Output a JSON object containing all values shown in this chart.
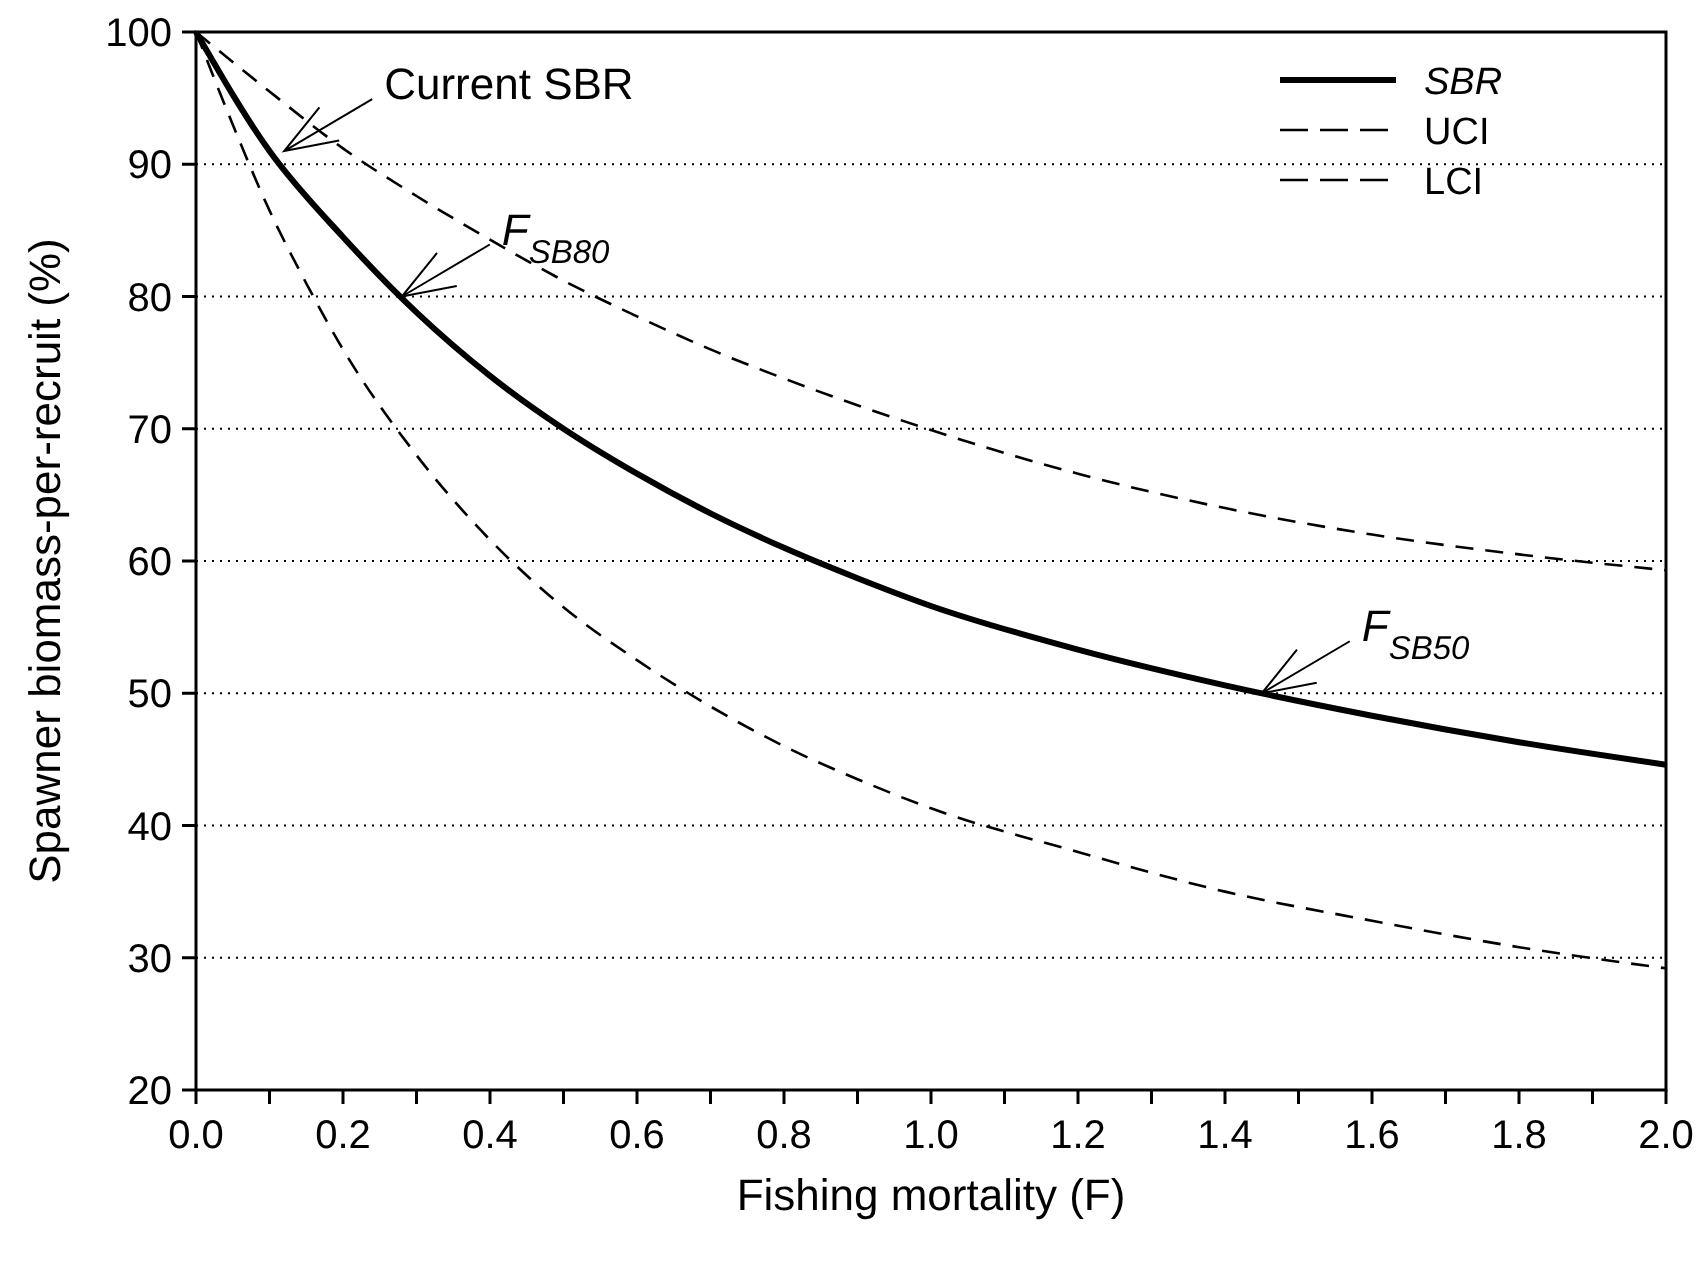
{
  "chart_data": {
    "type": "line",
    "xlabel": "Fishing mortality (F)",
    "ylabel": "Spawner biomass-per-recruit (%)",
    "xlim": [
      0,
      2
    ],
    "ylim": [
      20,
      100
    ],
    "xticks": [
      {
        "value": 0,
        "label": "0.0"
      },
      {
        "value": 0.1,
        "label": null
      },
      {
        "value": 0.2,
        "label": "0.2"
      },
      {
        "value": 0.3,
        "label": null
      },
      {
        "value": 0.4,
        "label": "0.4"
      },
      {
        "value": 0.5,
        "label": null
      },
      {
        "value": 0.6,
        "label": "0.6"
      },
      {
        "value": 0.7,
        "label": null
      },
      {
        "value": 0.8,
        "label": "0.8"
      },
      {
        "value": 0.9,
        "label": null
      },
      {
        "value": 1,
        "label": "1.0"
      },
      {
        "value": 1.1,
        "label": null
      },
      {
        "value": 1.2,
        "label": "1.2"
      },
      {
        "value": 1.3,
        "label": null
      },
      {
        "value": 1.4,
        "label": "1.4"
      },
      {
        "value": 1.5,
        "label": null
      },
      {
        "value": 1.6,
        "label": "1.6"
      },
      {
        "value": 1.7,
        "label": null
      },
      {
        "value": 1.8,
        "label": "1.8"
      },
      {
        "value": 1.9,
        "label": null
      },
      {
        "value": 2,
        "label": "2.0"
      }
    ],
    "yticks": [
      20,
      30,
      40,
      50,
      60,
      70,
      80,
      90,
      100
    ],
    "grid": "y",
    "legend": "top right",
    "marker": "none",
    "series": [
      {
        "name": "SBR",
        "color": "#000000",
        "line_style": "solid",
        "x": [
          0,
          0.1,
          0.2,
          0.3,
          0.4,
          0.5,
          0.6,
          0.7,
          0.8,
          0.9,
          1.0,
          1.2,
          1.4,
          1.6,
          1.8,
          2.0
        ],
        "values": [
          100,
          91,
          84.5,
          78.8,
          74,
          70,
          66.6,
          63.6,
          61,
          58.7,
          56.6,
          53.3,
          50.6,
          48.3,
          46.3,
          44.6
        ]
      },
      {
        "name": "UCI",
        "color": "#000000",
        "line_style": "dashed",
        "x": [
          0,
          0.1,
          0.2,
          0.3,
          0.4,
          0.5,
          0.6,
          0.7,
          0.8,
          1.0,
          1.2,
          1.4,
          1.6,
          1.8,
          2.0
        ],
        "values": [
          100,
          95.5,
          91.2,
          87.6,
          84.3,
          81.2,
          78.5,
          76,
          73.8,
          69.9,
          66.6,
          64,
          62,
          60.5,
          59.3
        ]
      },
      {
        "name": "LCI",
        "color": "#000000",
        "line_style": "dashed",
        "x": [
          0,
          0.05,
          0.1,
          0.15,
          0.2,
          0.3,
          0.4,
          0.5,
          0.6,
          0.67,
          0.8,
          0.9,
          1.0,
          1.2,
          1.4,
          1.6,
          1.8,
          2.0
        ],
        "values": [
          100,
          93,
          86.5,
          81,
          76,
          68,
          61.6,
          56.5,
          52.5,
          50,
          46,
          43.5,
          41.3,
          38,
          35,
          32.8,
          30.8,
          29.2
        ]
      }
    ],
    "annotations": [
      {
        "text": "Current SBR",
        "x": 0.12,
        "y": 91
      },
      {
        "text": "F$_{SB80}$",
        "x": 0.28,
        "y": 80
      },
      {
        "text": "F$_{SB50}$",
        "x": 1.45,
        "y": 50
      }
    ]
  }
}
